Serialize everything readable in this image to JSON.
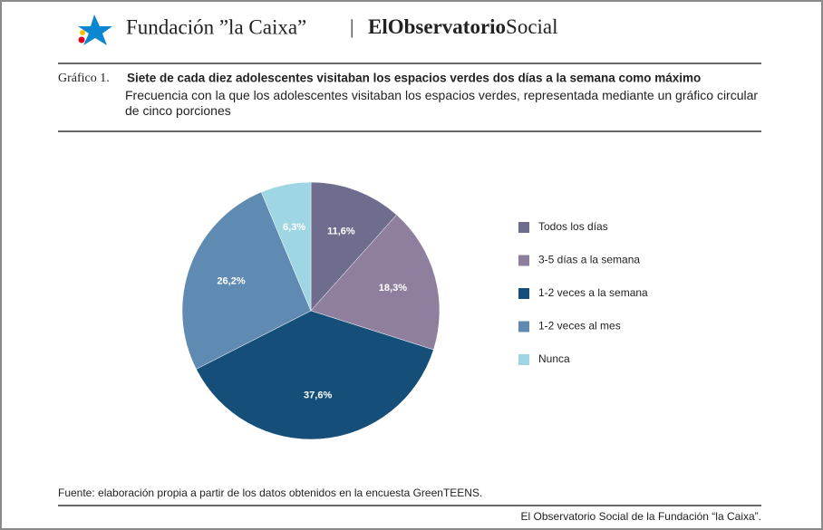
{
  "header": {
    "brand": "Fundación ”la Caixa”",
    "separator": "|",
    "product_a": "ElObservatorio",
    "product_b": "Social"
  },
  "chart_data": {
    "type": "pie",
    "figure_label": "Gráfico 1.",
    "title": "Siete de cada diez adolescentes visitaban los espacios verdes dos días a la semana como máximo",
    "subtitle": "Frecuencia con la que los adolescentes visitaban los espacios verdes, representada mediante un gráfico circular de cinco porciones",
    "categories": [
      "Todos los días",
      "3-5 días a la semana",
      "1-2 veces a la semana",
      "1-2 veces al mes",
      "Nunca"
    ],
    "values": [
      11.6,
      18.3,
      37.6,
      26.2,
      6.3
    ],
    "value_labels": [
      "11,6%",
      "18,3%",
      "37,6%",
      "26,2%",
      "6,3%"
    ],
    "colors": [
      "#6f6d8d",
      "#8e7f9f",
      "#154f79",
      "#5f8ab2",
      "#9fd6e3"
    ],
    "source": "Fuente: elaboración propia a partir de los datos obtenidos en la encuesta GreenTEENS.",
    "footer": "El Observatorio Social de la Fundación “la Caixa”."
  }
}
